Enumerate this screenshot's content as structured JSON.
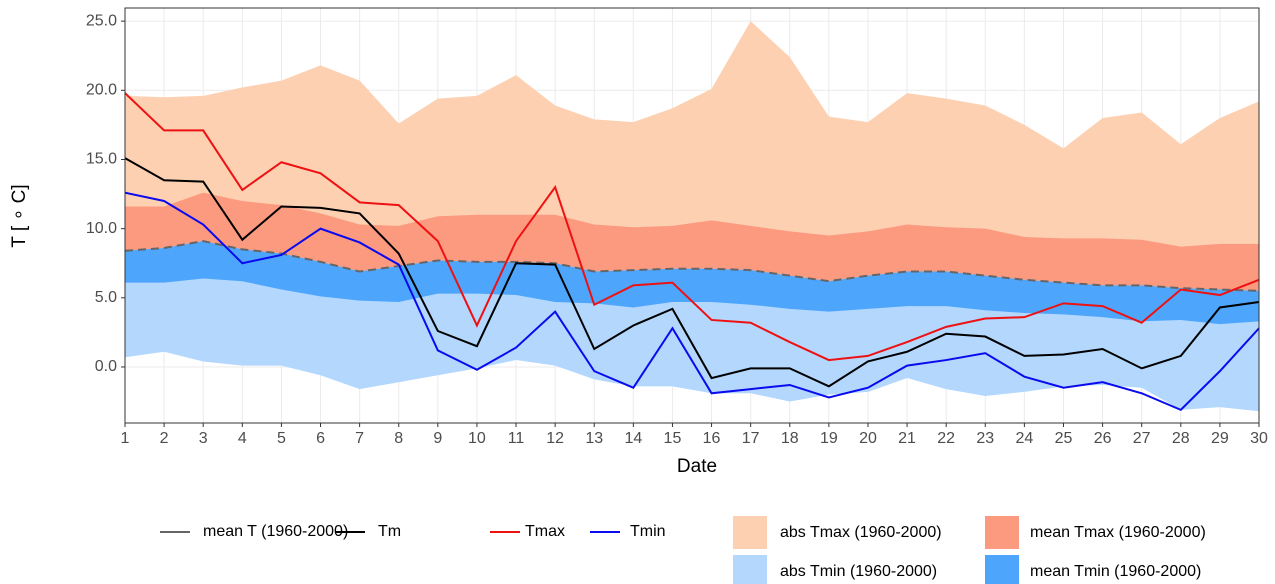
{
  "chart_data": {
    "type": "line",
    "x_label": "Date",
    "y_label": "T [ ∘ C]",
    "x": [
      1,
      2,
      3,
      4,
      5,
      6,
      7,
      8,
      9,
      10,
      11,
      12,
      13,
      14,
      15,
      16,
      17,
      18,
      19,
      20,
      21,
      22,
      23,
      24,
      25,
      26,
      27,
      28,
      29,
      30
    ],
    "xlim": [
      1,
      30
    ],
    "xticks": [
      1,
      2,
      3,
      4,
      5,
      6,
      7,
      8,
      9,
      10,
      11,
      12,
      13,
      14,
      15,
      16,
      17,
      18,
      19,
      20,
      21,
      22,
      23,
      24,
      25,
      26,
      27,
      28,
      29,
      30
    ],
    "ylim": [
      -4.05,
      25.95
    ],
    "yticks": [
      {
        "value": 0,
        "label": "0.0"
      },
      {
        "value": 5,
        "label": "5.0"
      },
      {
        "value": 10,
        "label": "10.0"
      },
      {
        "value": 15,
        "label": "15.0"
      },
      {
        "value": 20,
        "label": "20.0"
      },
      {
        "value": 25,
        "label": "25.0"
      }
    ],
    "grid": true,
    "series": [
      {
        "name": "abs Tmax (1960-2000)",
        "kind": "area",
        "color": "#fdd0b2",
        "values": [
          19.6,
          19.5,
          19.6,
          20.2,
          20.7,
          21.8,
          20.7,
          17.6,
          19.4,
          19.6,
          21.1,
          18.9,
          17.9,
          17.7,
          18.7,
          20.1,
          25.0,
          22.4,
          18.1,
          17.7,
          19.8,
          19.4,
          18.9,
          17.5,
          15.8,
          18.0,
          18.4,
          16.1,
          18.0,
          19.2
        ]
      },
      {
        "name": "mean Tmax (1960-2000)",
        "kind": "area",
        "color": "#fc9a80",
        "values": [
          11.6,
          11.6,
          12.6,
          12.0,
          11.7,
          11.1,
          10.3,
          10.2,
          10.9,
          11.0,
          11.0,
          11.0,
          10.3,
          10.1,
          10.2,
          10.6,
          10.2,
          9.8,
          9.5,
          9.8,
          10.3,
          10.1,
          10.0,
          9.4,
          9.3,
          9.3,
          9.2,
          8.7,
          8.9,
          8.9
        ]
      },
      {
        "name": "abs Tmin (1960-2000)",
        "kind": "area",
        "color": "#b3d7fd",
        "values": [
          0.7,
          1.1,
          0.4,
          0.1,
          0.1,
          -0.6,
          -1.6,
          -1.1,
          -0.6,
          -0.1,
          0.5,
          0.1,
          -0.9,
          -1.4,
          -1.4,
          -1.9,
          -1.9,
          -2.5,
          -2.0,
          -1.8,
          -0.8,
          -1.6,
          -2.1,
          -1.8,
          -1.4,
          -1.3,
          -1.5,
          -3.1,
          -2.9,
          -3.2
        ]
      },
      {
        "name": "mean Tmin (1960-2000)",
        "kind": "area",
        "color": "#4da6fc",
        "values": [
          6.1,
          6.1,
          6.4,
          6.2,
          5.6,
          5.1,
          4.8,
          4.7,
          5.3,
          5.3,
          5.2,
          4.7,
          4.6,
          4.3,
          4.7,
          4.7,
          4.5,
          4.2,
          4.0,
          4.2,
          4.4,
          4.4,
          4.1,
          3.9,
          3.8,
          3.6,
          3.3,
          3.4,
          3.1,
          3.3
        ]
      },
      {
        "name": "mean T (1960-2000)",
        "kind": "line",
        "dash": true,
        "color": "#666666",
        "values": [
          8.4,
          8.6,
          9.1,
          8.5,
          8.2,
          7.6,
          6.9,
          7.3,
          7.7,
          7.6,
          7.6,
          7.5,
          6.9,
          7.0,
          7.1,
          7.1,
          7.0,
          6.6,
          6.2,
          6.6,
          6.9,
          6.9,
          6.6,
          6.3,
          6.1,
          5.9,
          5.9,
          5.7,
          5.6,
          5.5
        ]
      },
      {
        "name": "Tm",
        "kind": "line",
        "color": "#000000",
        "values": [
          15.1,
          13.5,
          13.4,
          9.2,
          11.6,
          11.5,
          11.1,
          8.2,
          2.6,
          1.5,
          7.5,
          7.4,
          1.3,
          3.0,
          4.2,
          -0.8,
          -0.1,
          -0.1,
          -1.4,
          0.4,
          1.1,
          2.4,
          2.2,
          0.8,
          0.9,
          1.3,
          -0.1,
          0.8,
          4.3,
          4.7
        ]
      },
      {
        "name": "Tmax",
        "kind": "line",
        "color": "#ee1111",
        "values": [
          19.8,
          17.1,
          17.1,
          12.8,
          14.8,
          14.0,
          11.9,
          11.7,
          9.1,
          3.0,
          9.1,
          13.0,
          4.5,
          5.9,
          6.1,
          3.4,
          3.2,
          1.8,
          0.5,
          0.8,
          1.8,
          2.9,
          3.5,
          3.6,
          4.6,
          4.4,
          3.2,
          5.6,
          5.2,
          6.3
        ]
      },
      {
        "name": "Tmin",
        "kind": "line",
        "color": "#0a0aee",
        "values": [
          12.6,
          12.0,
          10.3,
          7.5,
          8.1,
          10.0,
          9.0,
          7.4,
          1.2,
          -0.2,
          1.4,
          4.0,
          -0.3,
          -1.5,
          2.8,
          -1.9,
          -1.6,
          -1.3,
          -2.2,
          -1.5,
          0.1,
          0.5,
          1.0,
          -0.7,
          -1.5,
          -1.1,
          -1.9,
          -3.1,
          -0.3,
          2.8
        ]
      }
    ]
  }
}
